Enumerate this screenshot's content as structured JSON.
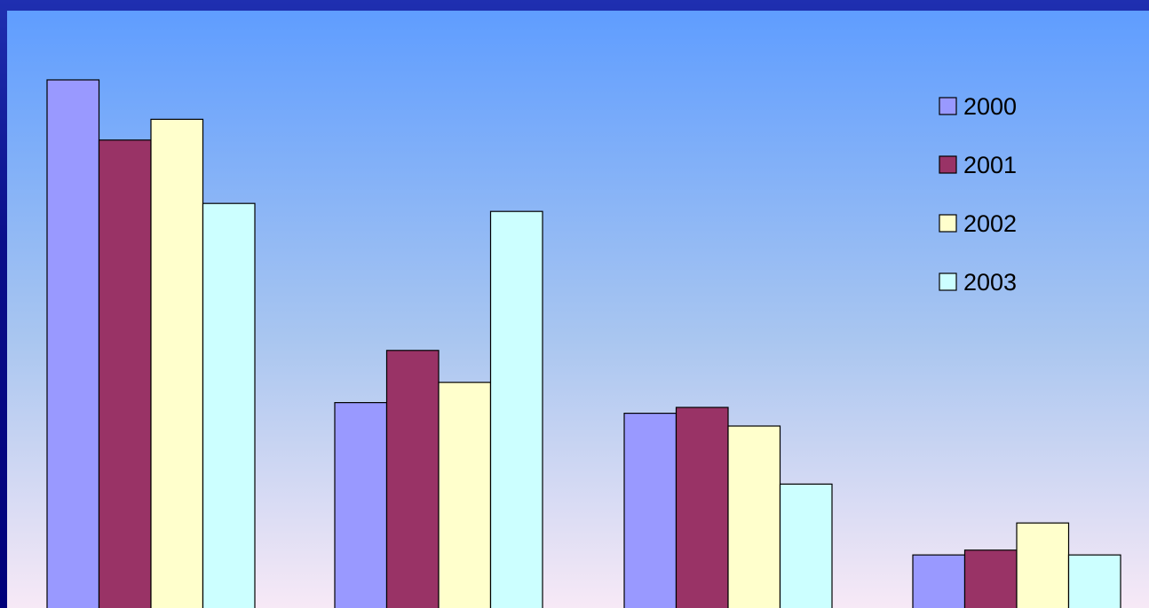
{
  "chart_data": {
    "type": "bar",
    "categories": [
      "",
      "",
      "",
      ""
    ],
    "series": [
      {
        "name": "2000",
        "color": "#9999ff",
        "values": [
          100,
          39.4,
          37.4,
          10.8
        ]
      },
      {
        "name": "2001",
        "color": "#993366",
        "values": [
          88.7,
          49.2,
          38.5,
          11.7
        ]
      },
      {
        "name": "2002",
        "color": "#ffffcc",
        "values": [
          92.6,
          43.2,
          35,
          16.8
        ]
      },
      {
        "name": "2003",
        "color": "#ccffff",
        "values": [
          76.8,
          75.3,
          24.1,
          10.8
        ]
      }
    ],
    "title": "",
    "xlabel": "",
    "ylabel": "",
    "ylim": [
      0,
      100
    ],
    "grid": false,
    "legend_position": "top-right"
  }
}
